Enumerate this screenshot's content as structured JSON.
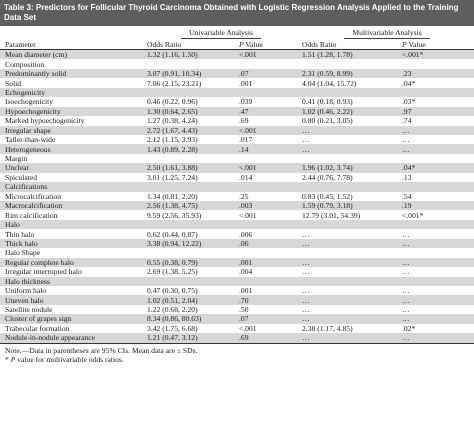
{
  "title": "Table 3: Predictors for Follicular Thyroid Carcinoma Obtained with Logistic Regression Analysis Applied to the Training Data Set",
  "header": {
    "univariable": "Univariable Analysis",
    "multivariable": "Multivariable Analysis",
    "parameter": "Parameter",
    "odds_ratio": "Odds Ratio",
    "p_italic": "P",
    "p_suffix": " Value",
    "odds_ratio_2": "Odds Ratio",
    "p_italic_2": "P",
    "p_suffix_2": " Value"
  },
  "rows": [
    {
      "label": "Mean diameter (cm)",
      "uor": "1.32 (1.16, 1.50)",
      "up": "<.001",
      "mor": "1.51 (1.28, 1.78)",
      "mp": "<.001*"
    },
    {
      "label": "Composition",
      "uor": "",
      "up": "",
      "mor": "",
      "mp": ""
    },
    {
      "label": "Predominantly solid",
      "uor": "3.07 (0.91, 10.34)",
      "up": ".07",
      "mor": "2.31 (0.59, 8.99)",
      "mp": ".23"
    },
    {
      "label": "Solid",
      "uor": "7.06 (2.15, 23.21)",
      "up": ".001",
      "mor": "4.04 (1.04, 15.72)",
      "mp": ".04*"
    },
    {
      "label": "Echogenicity",
      "uor": "",
      "up": "",
      "mor": "",
      "mp": ""
    },
    {
      "label": "Isoechogenicity",
      "uor": "0.46 (0.22, 0.96)",
      "up": ".039",
      "mor": "0.41 (0.18, 0.93)",
      "mp": ".03*"
    },
    {
      "label": "Hypoechogenicity",
      "uor": "1.30 (0.64, 2.65)",
      "up": ".47",
      "mor": "1.02 (0.46, 2.22)",
      "mp": ".97"
    },
    {
      "label": "Marked hypoechogenicity",
      "uor": "1.27 (0.38, 4.24)",
      "up": ".69",
      "mor": "0.80 (0.21, 3.05)",
      "mp": ".74"
    },
    {
      "label": "Irregular shape",
      "uor": "2.72 (1.67, 4.43)",
      "up": "<.001",
      "mor": "…",
      "mp": "…"
    },
    {
      "label": "Taller-than-wide",
      "uor": "2.12 (1.15, 3.93)",
      "up": ".017",
      "mor": "…",
      "mp": "…"
    },
    {
      "label": "Heterogeneous",
      "uor": "1.43 (0.89, 2.28)",
      "up": ".14",
      "mor": "…",
      "mp": "…"
    },
    {
      "label": "Margin",
      "uor": "",
      "up": "",
      "mor": "",
      "mp": ""
    },
    {
      "label": "Unclear",
      "uor": "2.50 (1.61, 3.88)",
      "up": "<.001",
      "mor": "1.96 (1.02, 3.74)",
      "mp": ".04*"
    },
    {
      "label": "Spiculated",
      "uor": "3.01 (1.25, 7.24)",
      "up": ".014",
      "mor": "2.44 (0.76, 7.78)",
      "mp": ".13"
    },
    {
      "label": "Calcifications",
      "uor": "",
      "up": "",
      "mor": "",
      "mp": ""
    },
    {
      "label": "Microcalcification",
      "uor": "1.34 (0.81, 2.20)",
      "up": ".25",
      "mor": "0.83 (0.45, 1.52)",
      "mp": ".54"
    },
    {
      "label": "Macrocalcification",
      "uor": "2.56 (1.38, 4.75)",
      "up": ".003",
      "mor": "1.59 (0.79, 3.18)",
      "mp": ".19"
    },
    {
      "label": "Rim calcification",
      "uor": "9.59 (2.56, 35.93)",
      "up": "<.001",
      "mor": "12.79 (3.01, 54.39)",
      "mp": "<.001*"
    },
    {
      "label": "Halo",
      "uor": "",
      "up": "",
      "mor": "",
      "mp": ""
    },
    {
      "label": "Thin halo",
      "uor": "0.62 (0.44, 0.87)",
      "up": ".006",
      "mor": "…",
      "mp": "…"
    },
    {
      "label": "Thick halo",
      "uor": "3.38 (0.94, 12.22)",
      "up": ".06",
      "mor": "…",
      "mp": "…"
    },
    {
      "label": "Halo Shape",
      "uor": "",
      "up": "",
      "mor": "",
      "mp": ""
    },
    {
      "label": "Regular complete halo",
      "uor": "0.55 (0.38, 0.79)",
      "up": ".001",
      "mor": "…",
      "mp": "…"
    },
    {
      "label": "Irregular interrupted halo",
      "uor": "2.69 (1.38, 5.25)",
      "up": ".004",
      "mor": "…",
      "mp": "…"
    },
    {
      "label": "Halo thickness",
      "uor": "",
      "up": "",
      "mor": "",
      "mp": ""
    },
    {
      "label": "Uniform halo",
      "uor": "0.47 (0.30, 0.75)",
      "up": ".001",
      "mor": "…",
      "mp": "…"
    },
    {
      "label": "Uneven halo",
      "uor": "1.02 (0.51, 2.04)",
      "up": ".70",
      "mor": "…",
      "mp": "…"
    },
    {
      "label": "Satellite nodule",
      "uor": "1.22 (0.68, 2.20)",
      "up": ".50",
      "mor": "…",
      "mp": "…"
    },
    {
      "label": "Cluster of grapes sign",
      "uor": "8.34 (0.86, 80.63)",
      "up": ".07",
      "mor": "…",
      "mp": "…"
    },
    {
      "label": "Trabecular formation",
      "uor": "3.42 (1.75, 6.68)",
      "up": "<.001",
      "mor": "2.38 (1.17, 4.85)",
      "mp": ".02*"
    },
    {
      "label": "Nodule-in-nodule appearance",
      "uor": "1.21 (0.47, 3.12)",
      "up": ".69",
      "mor": "…",
      "mp": "…"
    }
  ],
  "notes": {
    "line1": "Note.—Data in parentheses are 95% CIs. Mean data are ± SDs.",
    "line2_star": "* ",
    "line2_p": "P",
    "line2_rest": " value for multivariable odds ratios."
  }
}
